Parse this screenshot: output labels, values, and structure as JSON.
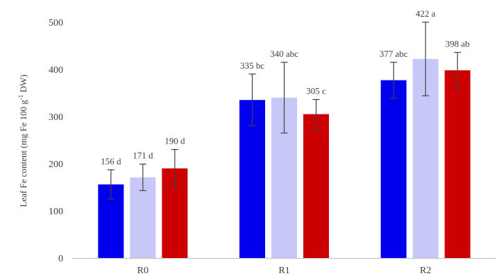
{
  "chart_data": {
    "type": "bar",
    "ylabel_main": "Leaf Fe content (mg Fe 100 g",
    "ylabel_sup": "-1",
    "ylabel_tail": " DW)",
    "xlabel": "",
    "ylim": [
      0,
      500
    ],
    "yticks": [
      0,
      100,
      200,
      300,
      400,
      500
    ],
    "grid": false,
    "legend": "none",
    "categories": [
      "R0",
      "R1",
      "R2"
    ],
    "series": [
      {
        "color": "#0000ee",
        "values": [
          156,
          335,
          377
        ],
        "errors": [
          31,
          55,
          38
        ],
        "labels": [
          "156 d",
          "335 bc",
          "377 abc"
        ]
      },
      {
        "color": "#c8c8f8",
        "values": [
          171,
          340,
          422
        ],
        "errors": [
          28,
          75,
          78
        ],
        "labels": [
          "171 d",
          "340 abc",
          "422 a"
        ]
      },
      {
        "color": "#cc0000",
        "values": [
          190,
          305,
          398
        ],
        "errors": [
          40,
          31,
          38
        ],
        "labels": [
          "190 d",
          "305 c",
          "398 ab"
        ]
      }
    ]
  }
}
